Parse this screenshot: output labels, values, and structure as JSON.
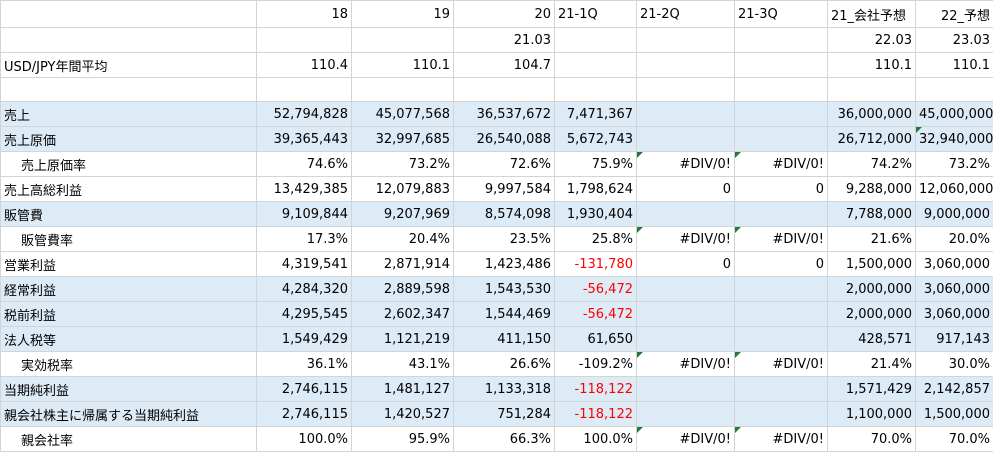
{
  "colors": {
    "highlight": "#ddebf7",
    "negative": "#ff0000",
    "gridline": "#d4d4d4",
    "error_indicator": "#1f7a3a"
  },
  "columns": [
    {
      "key": "c0",
      "width": 256
    },
    {
      "key": "c1",
      "width": 95
    },
    {
      "key": "c2",
      "width": 102
    },
    {
      "key": "c3",
      "width": 101
    },
    {
      "key": "c4",
      "width": 82
    },
    {
      "key": "c5",
      "width": 98
    },
    {
      "key": "c6",
      "width": 93
    },
    {
      "key": "c7",
      "width": 88
    },
    {
      "key": "c8",
      "width": 78
    }
  ],
  "rows": [
    {
      "name": "header-row-1",
      "h": 27,
      "cells": [
        {
          "t": "",
          "a": "l"
        },
        {
          "t": "18",
          "a": "r"
        },
        {
          "t": "19",
          "a": "r"
        },
        {
          "t": "20",
          "a": "r"
        },
        {
          "t": "21-1Q",
          "a": "l"
        },
        {
          "t": "21-2Q",
          "a": "l"
        },
        {
          "t": "21-3Q",
          "a": "l"
        },
        {
          "t": "21_会社予想",
          "a": "l"
        },
        {
          "t": "22_予想",
          "a": "r"
        }
      ]
    },
    {
      "name": "header-row-2",
      "h": 25,
      "cells": [
        {
          "t": "",
          "a": "l"
        },
        {
          "t": "",
          "a": "r"
        },
        {
          "t": "",
          "a": "r"
        },
        {
          "t": "21.03",
          "a": "r"
        },
        {
          "t": "",
          "a": "r"
        },
        {
          "t": "",
          "a": "r"
        },
        {
          "t": "",
          "a": "r"
        },
        {
          "t": "22.03",
          "a": "r"
        },
        {
          "t": "23.03",
          "a": "r"
        }
      ]
    },
    {
      "name": "row-usd-jpy",
      "h": 25,
      "cells": [
        {
          "t": "USD/JPY年間平均",
          "a": "l"
        },
        {
          "t": "110.4",
          "a": "r"
        },
        {
          "t": "110.1",
          "a": "r"
        },
        {
          "t": "104.7",
          "a": "r"
        },
        {
          "t": "",
          "a": "r"
        },
        {
          "t": "",
          "a": "r"
        },
        {
          "t": "",
          "a": "r"
        },
        {
          "t": "110.1",
          "a": "r"
        },
        {
          "t": "110.1",
          "a": "r"
        }
      ]
    },
    {
      "name": "row-blank",
      "h": 24,
      "cells": [
        {
          "t": "",
          "a": "l"
        },
        {
          "t": "",
          "a": "r"
        },
        {
          "t": "",
          "a": "r"
        },
        {
          "t": "",
          "a": "r"
        },
        {
          "t": "",
          "a": "r"
        },
        {
          "t": "",
          "a": "r"
        },
        {
          "t": "",
          "a": "r"
        },
        {
          "t": "",
          "a": "r"
        },
        {
          "t": "",
          "a": "r"
        }
      ]
    },
    {
      "name": "row-sales",
      "h": 25,
      "hl": true,
      "cells": [
        {
          "t": "売上",
          "a": "l"
        },
        {
          "t": "52,794,828",
          "a": "r"
        },
        {
          "t": "45,077,568",
          "a": "r"
        },
        {
          "t": "36,537,672",
          "a": "r"
        },
        {
          "t": "7,471,367",
          "a": "r"
        },
        {
          "t": "",
          "a": "r"
        },
        {
          "t": "",
          "a": "r"
        },
        {
          "t": "36,000,000",
          "a": "r"
        },
        {
          "t": "45,000,000",
          "a": "r"
        }
      ]
    },
    {
      "name": "row-cost-of-sales",
      "h": 25,
      "hl": true,
      "cells": [
        {
          "t": "売上原価",
          "a": "l"
        },
        {
          "t": "39,365,443",
          "a": "r"
        },
        {
          "t": "32,997,685",
          "a": "r"
        },
        {
          "t": "26,540,088",
          "a": "r"
        },
        {
          "t": "5,672,743",
          "a": "r"
        },
        {
          "t": "",
          "a": "r"
        },
        {
          "t": "",
          "a": "r"
        },
        {
          "t": "26,712,000",
          "a": "r"
        },
        {
          "t": "32,940,000",
          "a": "r",
          "tri": true
        }
      ]
    },
    {
      "name": "row-cost-ratio",
      "h": 25,
      "cells": [
        {
          "t": "売上原価率",
          "a": "l",
          "indent": true
        },
        {
          "t": "74.6%",
          "a": "r"
        },
        {
          "t": "73.2%",
          "a": "r"
        },
        {
          "t": "72.6%",
          "a": "r"
        },
        {
          "t": "75.9%",
          "a": "r"
        },
        {
          "t": "#DIV/0!",
          "a": "r",
          "tri": true
        },
        {
          "t": "#DIV/0!",
          "a": "r",
          "tri": true
        },
        {
          "t": "74.2%",
          "a": "r"
        },
        {
          "t": "73.2%",
          "a": "r"
        }
      ]
    },
    {
      "name": "row-gross-profit",
      "h": 25,
      "cells": [
        {
          "t": "売上高総利益",
          "a": "l"
        },
        {
          "t": "13,429,385",
          "a": "r"
        },
        {
          "t": "12,079,883",
          "a": "r"
        },
        {
          "t": "9,997,584",
          "a": "r"
        },
        {
          "t": "1,798,624",
          "a": "r"
        },
        {
          "t": "0",
          "a": "r"
        },
        {
          "t": "0",
          "a": "r"
        },
        {
          "t": "9,288,000",
          "a": "r"
        },
        {
          "t": "12,060,000",
          "a": "r"
        }
      ]
    },
    {
      "name": "row-sga",
      "h": 25,
      "hl": true,
      "cells": [
        {
          "t": "販管費",
          "a": "l"
        },
        {
          "t": "9,109,844",
          "a": "r"
        },
        {
          "t": "9,207,969",
          "a": "r"
        },
        {
          "t": "8,574,098",
          "a": "r"
        },
        {
          "t": "1,930,404",
          "a": "r"
        },
        {
          "t": "",
          "a": "r"
        },
        {
          "t": "",
          "a": "r"
        },
        {
          "t": "7,788,000",
          "a": "r"
        },
        {
          "t": "9,000,000",
          "a": "r"
        }
      ]
    },
    {
      "name": "row-sga-ratio",
      "h": 25,
      "cells": [
        {
          "t": "販管費率",
          "a": "l",
          "indent": true
        },
        {
          "t": "17.3%",
          "a": "r"
        },
        {
          "t": "20.4%",
          "a": "r"
        },
        {
          "t": "23.5%",
          "a": "r"
        },
        {
          "t": "25.8%",
          "a": "r"
        },
        {
          "t": "#DIV/0!",
          "a": "r",
          "tri": true
        },
        {
          "t": "#DIV/0!",
          "a": "r",
          "tri": true
        },
        {
          "t": "21.6%",
          "a": "r"
        },
        {
          "t": "20.0%",
          "a": "r"
        }
      ]
    },
    {
      "name": "row-operating-profit",
      "h": 25,
      "cells": [
        {
          "t": "営業利益",
          "a": "l"
        },
        {
          "t": "4,319,541",
          "a": "r"
        },
        {
          "t": "2,871,914",
          "a": "r"
        },
        {
          "t": "1,423,486",
          "a": "r"
        },
        {
          "t": "-131,780",
          "a": "r",
          "neg": true
        },
        {
          "t": "0",
          "a": "r"
        },
        {
          "t": "0",
          "a": "r"
        },
        {
          "t": "1,500,000",
          "a": "r"
        },
        {
          "t": "3,060,000",
          "a": "r"
        }
      ]
    },
    {
      "name": "row-ordinary-profit",
      "h": 25,
      "hl": true,
      "cells": [
        {
          "t": "経常利益",
          "a": "l"
        },
        {
          "t": "4,284,320",
          "a": "r"
        },
        {
          "t": "2,889,598",
          "a": "r"
        },
        {
          "t": "1,543,530",
          "a": "r"
        },
        {
          "t": "-56,472",
          "a": "r",
          "neg": true
        },
        {
          "t": "",
          "a": "r"
        },
        {
          "t": "",
          "a": "r"
        },
        {
          "t": "2,000,000",
          "a": "r"
        },
        {
          "t": "3,060,000",
          "a": "r"
        }
      ]
    },
    {
      "name": "row-pretax-profit",
      "h": 25,
      "hl": true,
      "cells": [
        {
          "t": "税前利益",
          "a": "l"
        },
        {
          "t": "4,295,545",
          "a": "r"
        },
        {
          "t": "2,602,347",
          "a": "r"
        },
        {
          "t": "1,544,469",
          "a": "r"
        },
        {
          "t": "-56,472",
          "a": "r",
          "neg": true
        },
        {
          "t": "",
          "a": "r"
        },
        {
          "t": "",
          "a": "r"
        },
        {
          "t": "2,000,000",
          "a": "r"
        },
        {
          "t": "3,060,000",
          "a": "r"
        }
      ]
    },
    {
      "name": "row-corporate-tax",
      "h": 25,
      "hl": true,
      "cells": [
        {
          "t": "法人税等",
          "a": "l"
        },
        {
          "t": "1,549,429",
          "a": "r"
        },
        {
          "t": "1,121,219",
          "a": "r"
        },
        {
          "t": "411,150",
          "a": "r"
        },
        {
          "t": "61,650",
          "a": "r"
        },
        {
          "t": "",
          "a": "r"
        },
        {
          "t": "",
          "a": "r"
        },
        {
          "t": "428,571",
          "a": "r"
        },
        {
          "t": "917,143",
          "a": "r"
        }
      ]
    },
    {
      "name": "row-effective-tax-rate",
      "h": 25,
      "cells": [
        {
          "t": "実効税率",
          "a": "l",
          "indent": true
        },
        {
          "t": "36.1%",
          "a": "r"
        },
        {
          "t": "43.1%",
          "a": "r"
        },
        {
          "t": "26.6%",
          "a": "r"
        },
        {
          "t": "-109.2%",
          "a": "r"
        },
        {
          "t": "#DIV/0!",
          "a": "r",
          "tri": true
        },
        {
          "t": "#DIV/0!",
          "a": "r",
          "tri": true
        },
        {
          "t": "21.4%",
          "a": "r"
        },
        {
          "t": "30.0%",
          "a": "r"
        }
      ]
    },
    {
      "name": "row-net-income",
      "h": 25,
      "hl": true,
      "cells": [
        {
          "t": "当期純利益",
          "a": "l"
        },
        {
          "t": "2,746,115",
          "a": "r"
        },
        {
          "t": "1,481,127",
          "a": "r"
        },
        {
          "t": "1,133,318",
          "a": "r"
        },
        {
          "t": "-118,122",
          "a": "r",
          "neg": true
        },
        {
          "t": "",
          "a": "r"
        },
        {
          "t": "",
          "a": "r"
        },
        {
          "t": "1,571,429",
          "a": "r"
        },
        {
          "t": "2,142,857",
          "a": "r"
        }
      ]
    },
    {
      "name": "row-net-income-parent",
      "h": 25,
      "hl": true,
      "cells": [
        {
          "t": "親会社株主に帰属する当期純利益",
          "a": "l"
        },
        {
          "t": "2,746,115",
          "a": "r"
        },
        {
          "t": "1,420,527",
          "a": "r"
        },
        {
          "t": "751,284",
          "a": "r"
        },
        {
          "t": "-118,122",
          "a": "r",
          "neg": true
        },
        {
          "t": "",
          "a": "r"
        },
        {
          "t": "",
          "a": "r"
        },
        {
          "t": "1,100,000",
          "a": "r"
        },
        {
          "t": "1,500,000",
          "a": "r"
        }
      ]
    },
    {
      "name": "row-parent-ratio",
      "h": 25,
      "cells": [
        {
          "t": "親会社率",
          "a": "l",
          "indent": true
        },
        {
          "t": "100.0%",
          "a": "r"
        },
        {
          "t": "95.9%",
          "a": "r"
        },
        {
          "t": "66.3%",
          "a": "r"
        },
        {
          "t": "100.0%",
          "a": "r"
        },
        {
          "t": "#DIV/0!",
          "a": "r",
          "tri": true
        },
        {
          "t": "#DIV/0!",
          "a": "r",
          "tri": true
        },
        {
          "t": "70.0%",
          "a": "r"
        },
        {
          "t": "70.0%",
          "a": "r"
        }
      ]
    }
  ]
}
